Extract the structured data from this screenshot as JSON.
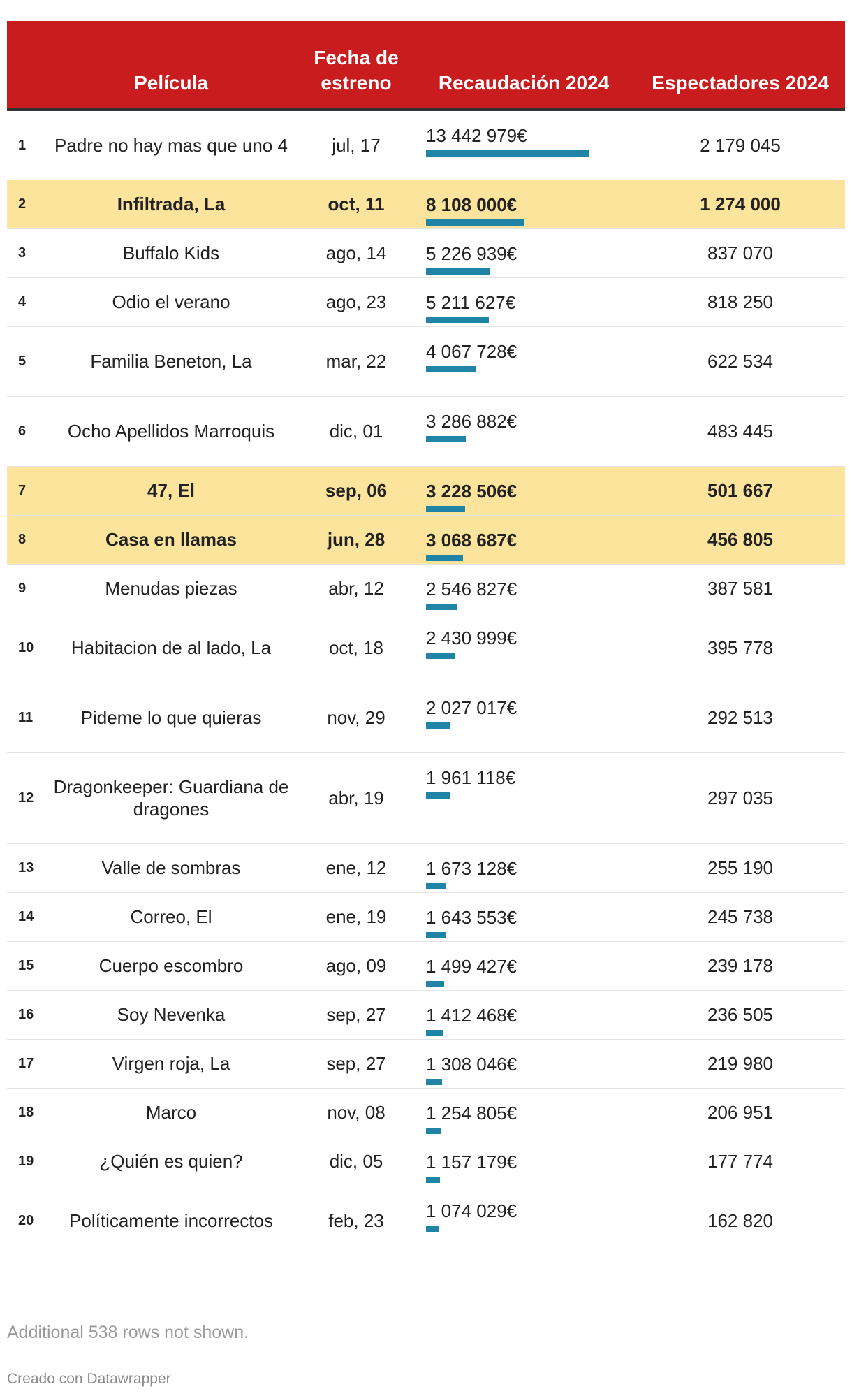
{
  "table": {
    "headers": {
      "rank": "",
      "title": "Película",
      "date": "Fecha de estreno",
      "gross": "Recaudación 2024",
      "spectators": "Espectadores 2024"
    },
    "rows": [
      {
        "rank": "1",
        "title": "Padre no hay mas que uno 4",
        "date": "jul, 17",
        "gross_label": "13 442 979€",
        "spectators": "2 179 045",
        "gross_value": 13442979,
        "highlight": false
      },
      {
        "rank": "2",
        "title": "Infiltrada, La",
        "date": "oct, 11",
        "gross_label": "8 108 000€",
        "spectators": "1 274 000",
        "gross_value": 8108000,
        "highlight": true
      },
      {
        "rank": "3",
        "title": "Buffalo Kids",
        "date": "ago, 14",
        "gross_label": "5 226 939€",
        "spectators": "837 070",
        "gross_value": 5226939,
        "highlight": false
      },
      {
        "rank": "4",
        "title": "Odio el verano",
        "date": "ago, 23",
        "gross_label": "5 211 627€",
        "spectators": "818 250",
        "gross_value": 5211627,
        "highlight": false
      },
      {
        "rank": "5",
        "title": "Familia Beneton, La",
        "date": "mar, 22",
        "gross_label": "4 067 728€",
        "spectators": "622 534",
        "gross_value": 4067728,
        "highlight": false
      },
      {
        "rank": "6",
        "title": "Ocho Apellidos Marroquis",
        "date": "dic, 01",
        "gross_label": "3 286 882€",
        "spectators": "483 445",
        "gross_value": 3286882,
        "highlight": false
      },
      {
        "rank": "7",
        "title": "47, El",
        "date": "sep, 06",
        "gross_label": "3 228 506€",
        "spectators": "501 667",
        "gross_value": 3228506,
        "highlight": true
      },
      {
        "rank": "8",
        "title": "Casa en llamas",
        "date": "jun, 28",
        "gross_label": "3 068 687€",
        "spectators": "456 805",
        "gross_value": 3068687,
        "highlight": true
      },
      {
        "rank": "9",
        "title": "Menudas piezas",
        "date": "abr, 12",
        "gross_label": "2 546 827€",
        "spectators": "387 581",
        "gross_value": 2546827,
        "highlight": false
      },
      {
        "rank": "10",
        "title": "Habitacion de al lado, La",
        "date": "oct, 18",
        "gross_label": "2 430 999€",
        "spectators": "395 778",
        "gross_value": 2430999,
        "highlight": false
      },
      {
        "rank": "11",
        "title": "Pideme lo que quieras",
        "date": "nov, 29",
        "gross_label": "2 027 017€",
        "spectators": "292 513",
        "gross_value": 2027017,
        "highlight": false
      },
      {
        "rank": "12",
        "title": "Dragonkeeper: Guardiana de dragones",
        "date": "abr, 19",
        "gross_label": "1 961 118€",
        "spectators": "297 035",
        "gross_value": 1961118,
        "highlight": false
      },
      {
        "rank": "13",
        "title": "Valle de sombras",
        "date": "ene, 12",
        "gross_label": "1 673 128€",
        "spectators": "255 190",
        "gross_value": 1673128,
        "highlight": false
      },
      {
        "rank": "14",
        "title": "Correo, El",
        "date": "ene, 19",
        "gross_label": "1 643 553€",
        "spectators": "245 738",
        "gross_value": 1643553,
        "highlight": false
      },
      {
        "rank": "15",
        "title": "Cuerpo escombro",
        "date": "ago, 09",
        "gross_label": "1 499 427€",
        "spectators": "239 178",
        "gross_value": 1499427,
        "highlight": false
      },
      {
        "rank": "16",
        "title": "Soy Nevenka",
        "date": "sep, 27",
        "gross_label": "1 412 468€",
        "spectators": "236 505",
        "gross_value": 1412468,
        "highlight": false
      },
      {
        "rank": "17",
        "title": "Virgen roja, La",
        "date": "sep, 27",
        "gross_label": "1 308 046€",
        "spectators": "219 980",
        "gross_value": 1308046,
        "highlight": false
      },
      {
        "rank": "18",
        "title": "Marco",
        "date": "nov, 08",
        "gross_label": "1 254 805€",
        "spectators": "206 951",
        "gross_value": 1254805,
        "highlight": false
      },
      {
        "rank": "19",
        "title": "¿Quién es quien?",
        "date": "dic, 05",
        "gross_label": "1 157 179€",
        "spectators": "177 774",
        "gross_value": 1157179,
        "highlight": false
      },
      {
        "rank": "20",
        "title": "Políticamente incorrectos",
        "date": "feb, 23",
        "gross_label": "1 074 029€",
        "spectators": "162 820",
        "gross_value": 1074029,
        "highlight": false
      }
    ]
  },
  "chart_data": {
    "type": "table",
    "columns": [
      "",
      "Película",
      "Fecha de estreno",
      "Recaudación 2024",
      "Espectadores 2024"
    ],
    "bar_column": "Recaudación 2024",
    "bar_max": 13442979
  },
  "footer": {
    "note": "Additional 538 rows not shown.",
    "credit": "Creado con Datawrapper"
  },
  "colors": {
    "header_bg": "#c91c1f",
    "highlight_bg": "#fce49c",
    "bar": "#1f84a5"
  }
}
